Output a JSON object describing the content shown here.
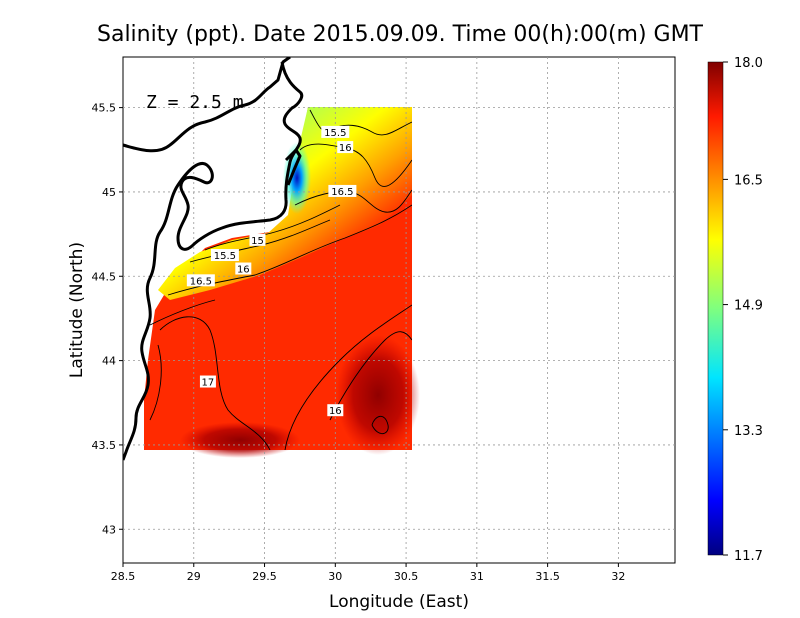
{
  "chart_data": {
    "type": "heatmap",
    "title": "Salinity (ppt). Date 2015.09.09. Time 00(h):00(m) GMT",
    "xlabel": "Longitude (East)",
    "ylabel": "Latitude (North)",
    "annotation": "Z = 2.5 m",
    "xlim": [
      28.5,
      32.4
    ],
    "ylim": [
      42.8,
      45.8
    ],
    "grid": true,
    "xticks": [
      "28.5",
      "29",
      "29.5",
      "30",
      "30.5",
      "31",
      "31.5",
      "32"
    ],
    "xtick_values": [
      28.5,
      29,
      29.5,
      30,
      30.5,
      31,
      31.5,
      32
    ],
    "yticks": [
      "43",
      "43.5",
      "44",
      "44.5",
      "45",
      "45.5"
    ],
    "ytick_values": [
      43,
      43.5,
      44,
      44.5,
      45,
      45.5
    ],
    "colorbar": {
      "min": 11.7,
      "max": 18.0,
      "tick_labels": [
        "18.0",
        "16.5",
        "14.9",
        "13.3",
        "11.7"
      ],
      "tick_values": [
        18.0,
        16.5,
        14.9,
        13.3,
        11.7
      ],
      "colormap": "jet"
    },
    "contour_labels": [
      {
        "text": "15.5",
        "lon": 30.0,
        "lat": 45.35
      },
      {
        "text": "16",
        "lon": 30.07,
        "lat": 45.26
      },
      {
        "text": "16.5",
        "lon": 30.05,
        "lat": 45.0
      },
      {
        "text": "15",
        "lon": 29.45,
        "lat": 44.71
      },
      {
        "text": "15.5",
        "lon": 29.22,
        "lat": 44.62
      },
      {
        "text": "16",
        "lon": 29.35,
        "lat": 44.54
      },
      {
        "text": "16.5",
        "lon": 29.05,
        "lat": 44.47
      },
      {
        "text": "17",
        "lon": 29.1,
        "lat": 43.87
      },
      {
        "text": "16",
        "lon": 30.0,
        "lat": 43.7
      }
    ],
    "field_domain": {
      "lon": [
        28.65,
        30.55
      ],
      "lat": [
        43.48,
        45.5
      ]
    },
    "salinity_samples": [
      {
        "lon": 29.7,
        "lat": 45.1,
        "value": 12.0
      },
      {
        "lon": 29.9,
        "lat": 45.4,
        "value": 14.5
      },
      {
        "lon": 30.3,
        "lat": 45.4,
        "value": 14.8
      },
      {
        "lon": 29.3,
        "lat": 44.7,
        "value": 15.2
      },
      {
        "lon": 29.5,
        "lat": 44.4,
        "value": 16.8
      },
      {
        "lon": 29.0,
        "lat": 44.0,
        "value": 17.2
      },
      {
        "lon": 30.2,
        "lat": 43.8,
        "value": 17.6
      },
      {
        "lon": 30.4,
        "lat": 43.6,
        "value": 17.8
      }
    ]
  }
}
